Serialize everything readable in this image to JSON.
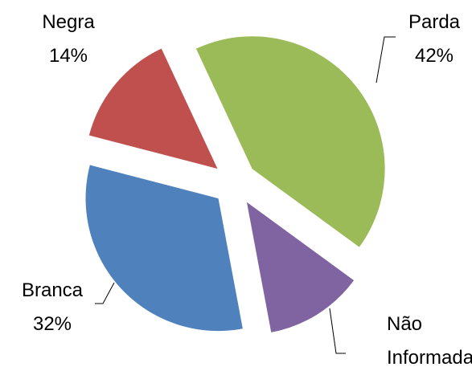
{
  "chart_data": {
    "type": "pie",
    "categories": [
      "Parda",
      "Não Informada",
      "Branca",
      "Negra"
    ],
    "values": [
      42,
      12,
      32,
      14
    ],
    "value_labels": [
      "42%",
      null,
      "32%",
      "14%"
    ],
    "colors": [
      "#9bbb59",
      "#8064a2",
      "#4f81bd",
      "#c0504d"
    ]
  }
}
